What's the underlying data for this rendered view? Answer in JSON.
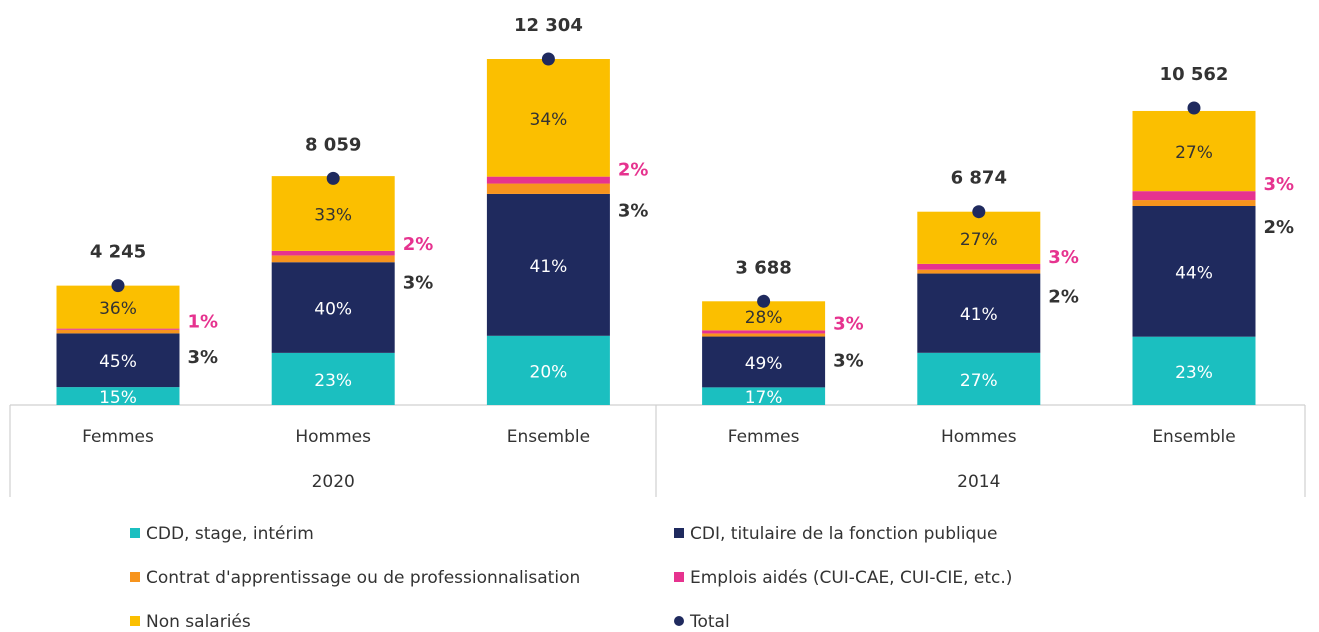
{
  "chart_data": {
    "type": "bar",
    "stacked": true,
    "groups": [
      {
        "label": "2020",
        "categories": [
          "Femmes",
          "Hommes",
          "Ensemble"
        ]
      },
      {
        "label": "2014",
        "categories": [
          "Femmes",
          "Hommes",
          "Ensemble"
        ]
      }
    ],
    "series": [
      {
        "name": "CDD, stage, intérim",
        "color": "#1bbfc0",
        "values": [
          15,
          23,
          20,
          17,
          27,
          23
        ],
        "value_labels": [
          "15%",
          "23%",
          "20%",
          "17%",
          "27%",
          "23%"
        ]
      },
      {
        "name": "CDI, titulaire de la fonction publique",
        "color": "#1f2a5e",
        "values": [
          45,
          40,
          41,
          49,
          41,
          44
        ],
        "value_labels": [
          "45%",
          "40%",
          "41%",
          "49%",
          "41%",
          "44%"
        ]
      },
      {
        "name": "Contrat d'apprentissage ou de professionnalisation",
        "color": "#f7941d",
        "values": [
          3,
          3,
          3,
          3,
          2,
          2
        ],
        "value_labels": [
          "3%",
          "3%",
          "3%",
          "3%",
          "2%",
          "2%"
        ]
      },
      {
        "name": "Emplois aidés (CUI-CAE, CUI-CIE, etc.)",
        "color": "#e6338f",
        "values": [
          1,
          2,
          2,
          3,
          3,
          3
        ],
        "value_labels": [
          "1%",
          "2%",
          "2%",
          "3%",
          "3%",
          "3%"
        ]
      },
      {
        "name": "Non salariés",
        "color": "#fbbf00",
        "values": [
          36,
          33,
          34,
          28,
          27,
          27
        ],
        "value_labels": [
          "36%",
          "33%",
          "34%",
          "28%",
          "27%",
          "27%"
        ]
      }
    ],
    "total": {
      "name": "Total",
      "color": "#1f2a5e",
      "values": [
        4245,
        8059,
        12304,
        3688,
        6874,
        10562
      ],
      "value_labels": [
        "4 245",
        "8 059",
        "12 304",
        "3 688",
        "6 874",
        "10 562"
      ]
    }
  }
}
